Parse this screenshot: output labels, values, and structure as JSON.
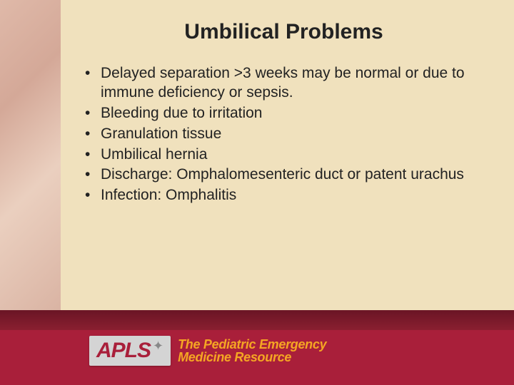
{
  "slide": {
    "title": "Umbilical Problems",
    "bullets": [
      "Delayed separation >3 weeks may be normal or due to immune deficiency or sepsis.",
      "Bleeding due to irritation",
      "Granulation tissue",
      "Umbilical hernia",
      "Discharge: Omphalomesenteric duct or patent urachus",
      "Infection: Omphalitis"
    ]
  },
  "footer": {
    "logo_acronym": "APLS",
    "logo_line1": "The Pediatric Emergency",
    "logo_line2": "Medicine Resource"
  },
  "colors": {
    "background": "#f0e1bd",
    "footer_bar": "#a91f3a",
    "footer_band_top": "#6a1525",
    "logo_text": "#a91f3a",
    "logo_sub": "#f5a623",
    "text": "#222222"
  }
}
